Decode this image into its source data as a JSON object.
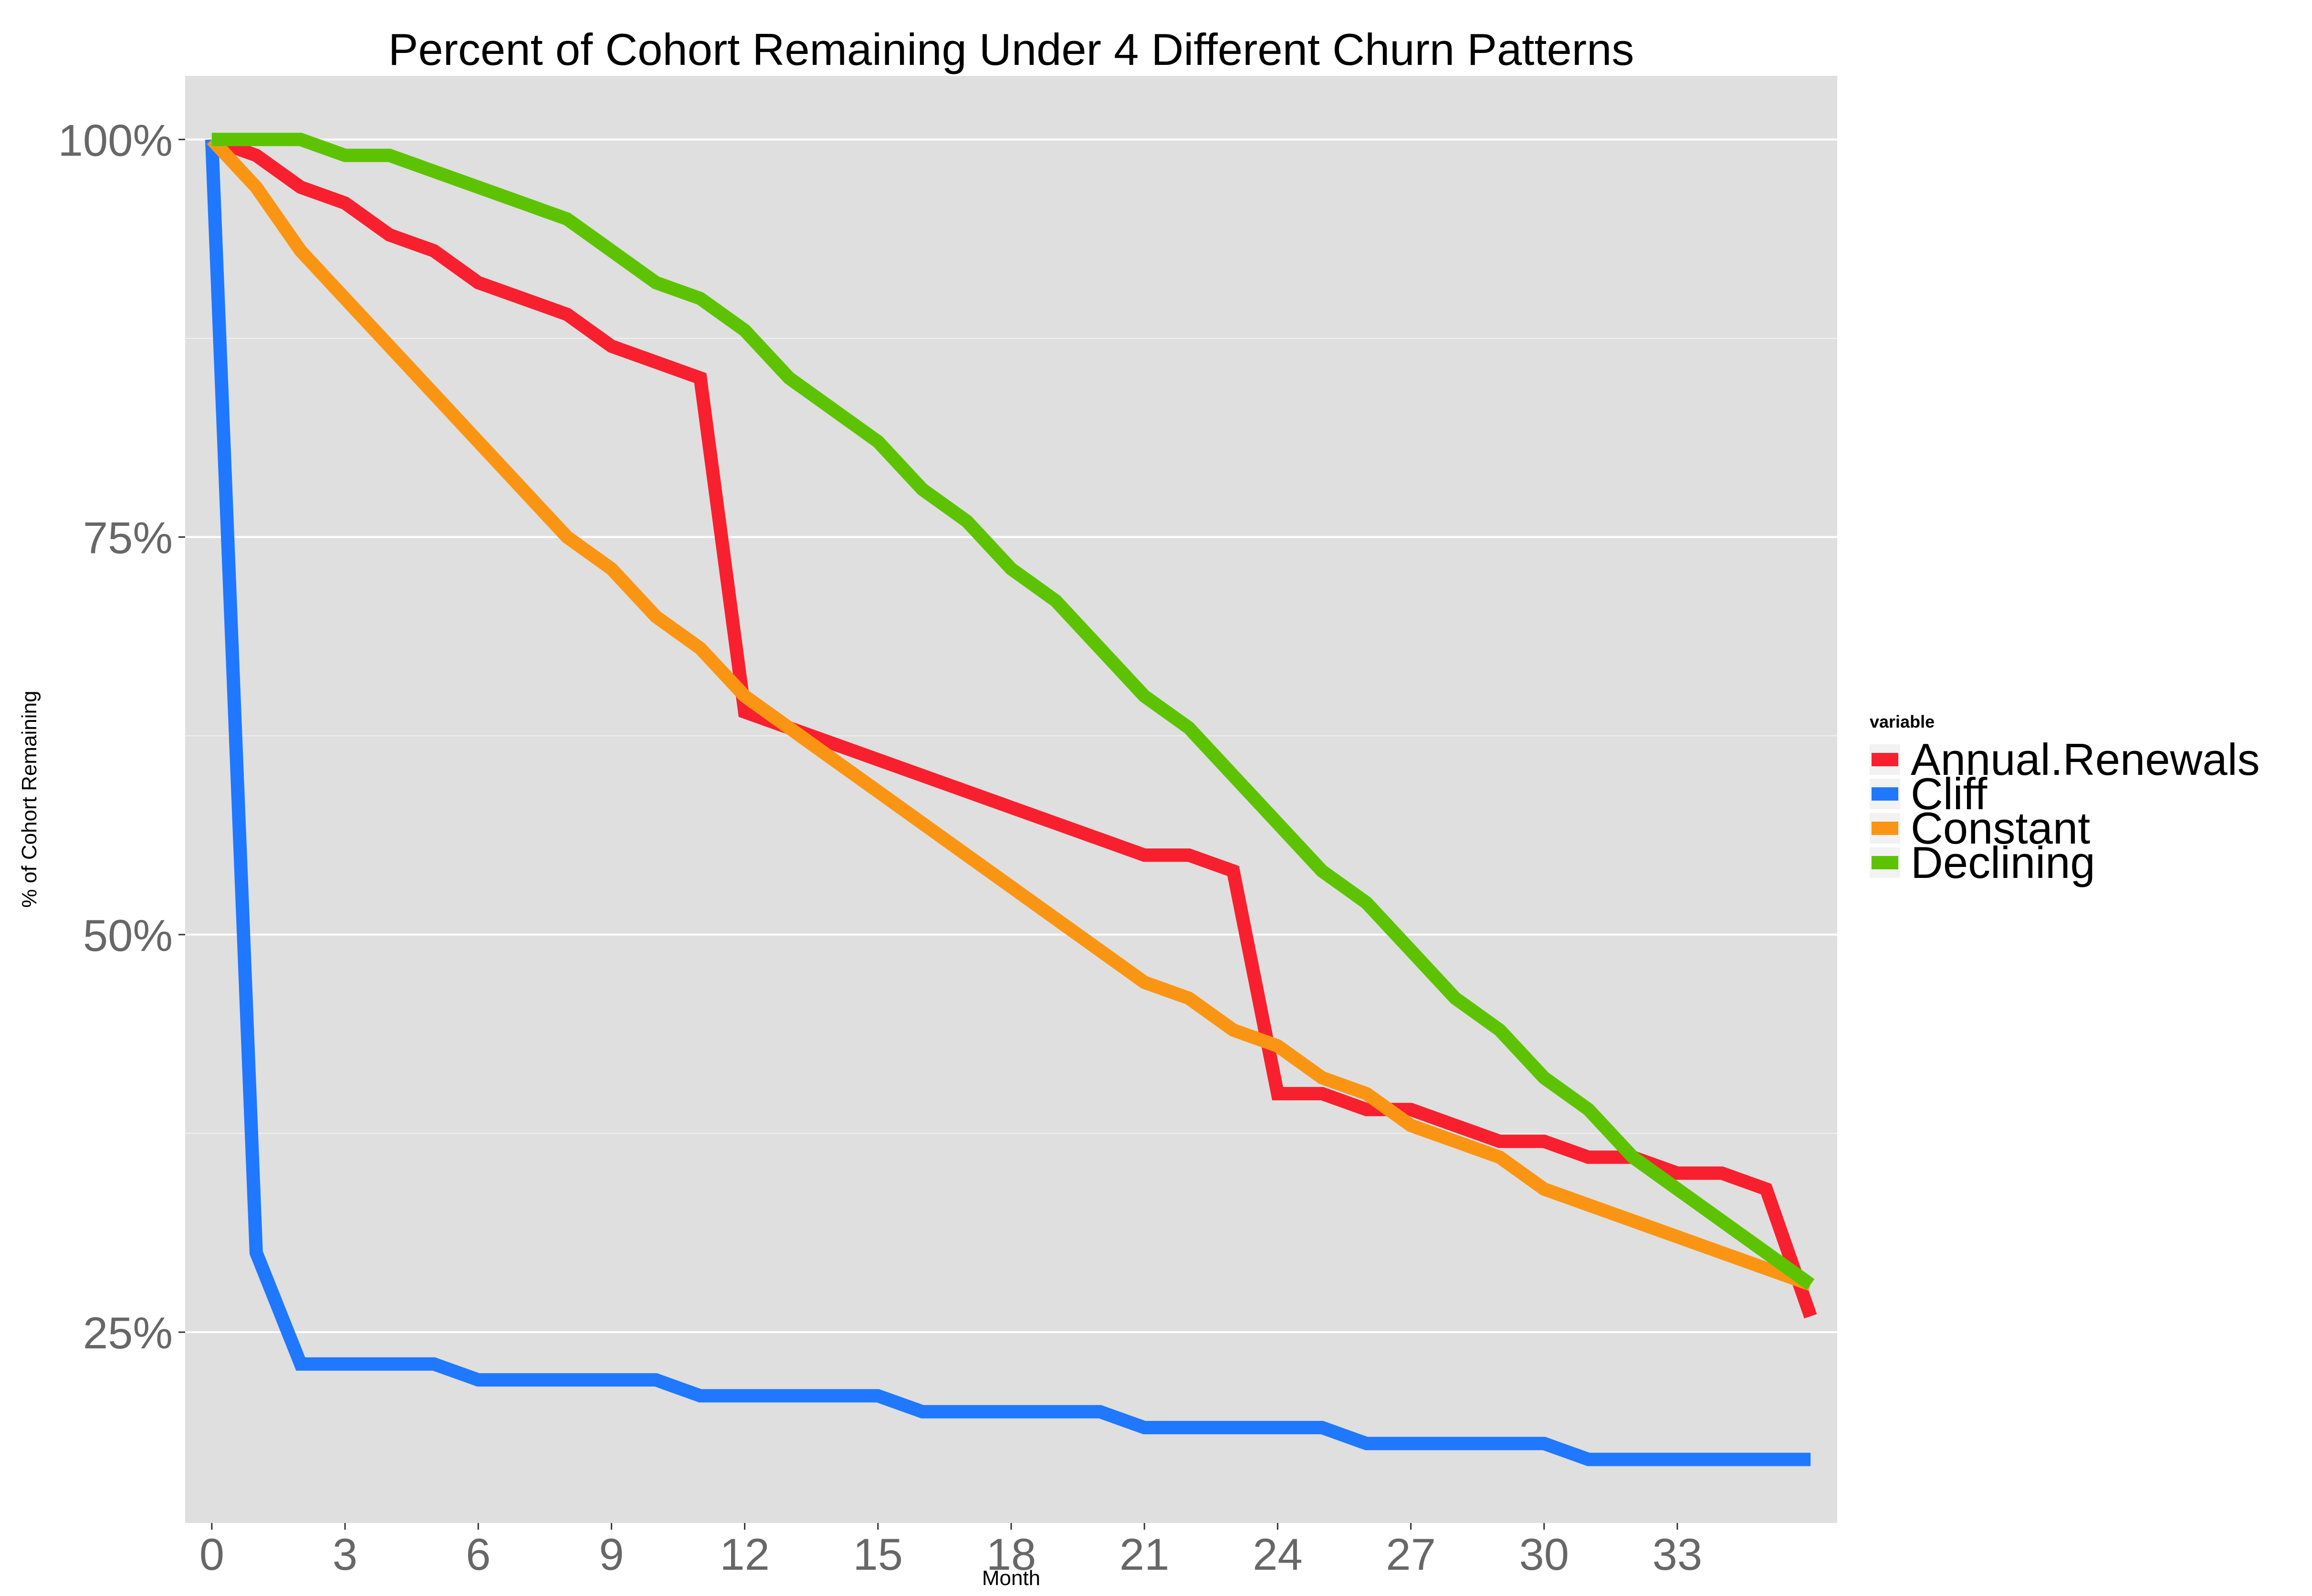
{
  "chart_data": {
    "type": "line",
    "title": "Percent of Cohort Remaining Under 4 Different Churn Patterns",
    "xlabel": "Month",
    "ylabel": "% of Cohort Remaining",
    "xlim": [
      -0.6,
      36.6
    ],
    "ylim": [
      0.13,
      1.04
    ],
    "x_ticks": [
      0,
      3,
      6,
      9,
      12,
      15,
      18,
      21,
      24,
      27,
      30,
      33
    ],
    "y_ticks": [
      0.25,
      0.5,
      0.75,
      1.0
    ],
    "y_tick_labels": [
      "25%",
      "50%",
      "75%",
      "100%"
    ],
    "grid": true,
    "legend": {
      "title": "variable",
      "position": "right"
    },
    "x": [
      0,
      1,
      2,
      3,
      4,
      5,
      6,
      7,
      8,
      9,
      10,
      11,
      12,
      13,
      14,
      15,
      16,
      17,
      18,
      19,
      20,
      21,
      22,
      23,
      24,
      25,
      26,
      27,
      28,
      29,
      30,
      31,
      32,
      33,
      34,
      35,
      36
    ],
    "series": [
      {
        "name": "Annual.Renewals",
        "color": "#F8202E",
        "values": [
          1.0,
          0.99,
          0.97,
          0.96,
          0.94,
          0.93,
          0.91,
          0.9,
          0.89,
          0.87,
          0.86,
          0.85,
          0.64,
          0.63,
          0.62,
          0.61,
          0.6,
          0.59,
          0.58,
          0.57,
          0.56,
          0.55,
          0.55,
          0.54,
          0.4,
          0.4,
          0.39,
          0.39,
          0.38,
          0.37,
          0.37,
          0.36,
          0.36,
          0.35,
          0.35,
          0.34,
          0.26
        ]
      },
      {
        "name": "Cliff",
        "color": "#1F78FF",
        "values": [
          1.0,
          0.3,
          0.23,
          0.23,
          0.23,
          0.23,
          0.22,
          0.22,
          0.22,
          0.22,
          0.22,
          0.21,
          0.21,
          0.21,
          0.21,
          0.21,
          0.2,
          0.2,
          0.2,
          0.2,
          0.2,
          0.19,
          0.19,
          0.19,
          0.19,
          0.19,
          0.18,
          0.18,
          0.18,
          0.18,
          0.18,
          0.17,
          0.17,
          0.17,
          0.17,
          0.17,
          0.17
        ]
      },
      {
        "name": "Constant",
        "color": "#FA9514",
        "values": [
          1.0,
          0.97,
          0.93,
          0.9,
          0.87,
          0.84,
          0.81,
          0.78,
          0.75,
          0.73,
          0.7,
          0.68,
          0.65,
          0.63,
          0.61,
          0.59,
          0.57,
          0.55,
          0.53,
          0.51,
          0.49,
          0.47,
          0.46,
          0.44,
          0.43,
          0.41,
          0.4,
          0.38,
          0.37,
          0.36,
          0.34,
          0.33,
          0.32,
          0.31,
          0.3,
          0.29,
          0.28
        ]
      },
      {
        "name": "Declining",
        "color": "#5DC300",
        "values": [
          1.0,
          1.0,
          1.0,
          0.99,
          0.99,
          0.98,
          0.97,
          0.96,
          0.95,
          0.93,
          0.91,
          0.9,
          0.88,
          0.85,
          0.83,
          0.81,
          0.78,
          0.76,
          0.73,
          0.71,
          0.68,
          0.65,
          0.63,
          0.6,
          0.57,
          0.54,
          0.52,
          0.49,
          0.46,
          0.44,
          0.41,
          0.39,
          0.36,
          0.34,
          0.32,
          0.3,
          0.28
        ]
      }
    ]
  },
  "style": {
    "panel_background": "#DFDFDF",
    "grid_color": "#FFFFFF",
    "tick_label_color": "#676767",
    "text_color": "#000000"
  }
}
